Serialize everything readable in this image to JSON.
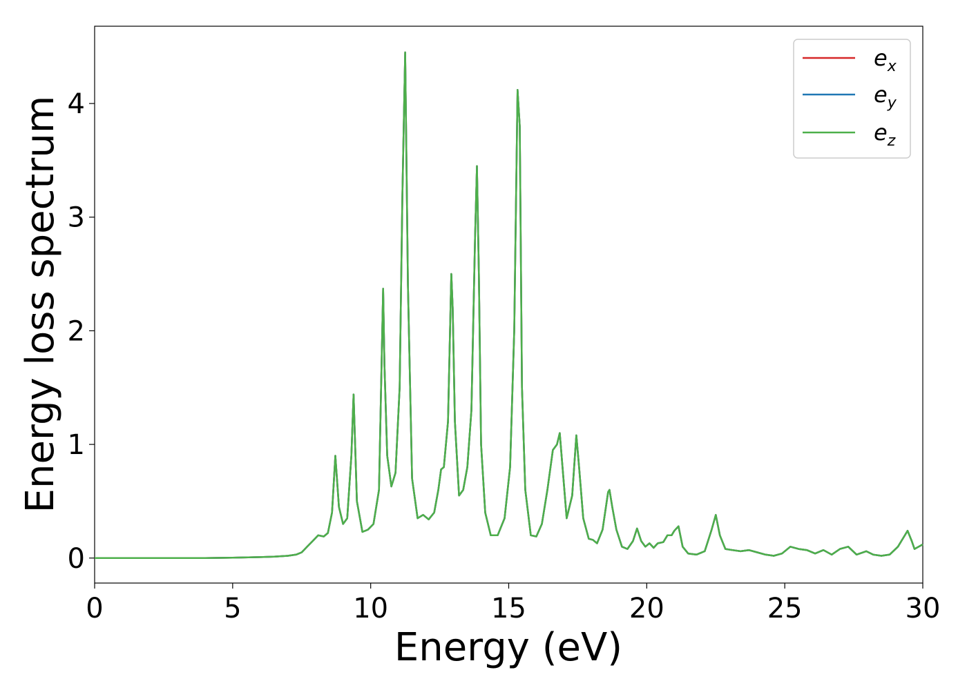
{
  "chart_data": {
    "type": "line",
    "xlabel": "Energy (eV)",
    "ylabel": "Energy loss spectrum",
    "xlim": [
      0,
      30
    ],
    "ylim": [
      -0.22,
      4.68
    ],
    "xticks": [
      0,
      5,
      10,
      15,
      20,
      25,
      30
    ],
    "yticks": [
      0,
      1,
      2,
      3,
      4
    ],
    "xtick_labels": [
      "0",
      "5",
      "10",
      "15",
      "20",
      "25",
      "30"
    ],
    "ytick_labels": [
      "0",
      "1",
      "2",
      "3",
      "4"
    ],
    "grid": false,
    "legend_position": "top-right",
    "series": [
      {
        "name": "e_x",
        "label_main": "e",
        "label_sub": "x",
        "color": "#d62728"
      },
      {
        "name": "e_y",
        "label_main": "e",
        "label_sub": "y",
        "color": "#1f77b4"
      },
      {
        "name": "e_z",
        "label_main": "e",
        "label_sub": "z",
        "color": "#4daf4a"
      }
    ],
    "points": {
      "x": [
        0,
        1,
        2,
        3,
        4,
        5,
        6,
        6.5,
        7.0,
        7.3,
        7.5,
        7.7,
        7.9,
        8.1,
        8.3,
        8.45,
        8.6,
        8.72,
        8.85,
        9.0,
        9.15,
        9.3,
        9.38,
        9.5,
        9.7,
        9.9,
        10.1,
        10.3,
        10.45,
        10.5,
        10.6,
        10.75,
        10.9,
        11.05,
        11.15,
        11.25,
        11.35,
        11.5,
        11.7,
        11.9,
        12.1,
        12.3,
        12.45,
        12.55,
        12.65,
        12.8,
        12.92,
        12.97,
        13.05,
        13.2,
        13.35,
        13.5,
        13.65,
        13.78,
        13.85,
        13.92,
        14.0,
        14.15,
        14.35,
        14.6,
        14.85,
        15.05,
        15.2,
        15.32,
        15.4,
        15.48,
        15.6,
        15.8,
        16.0,
        16.2,
        16.4,
        16.6,
        16.75,
        16.85,
        16.95,
        17.1,
        17.3,
        17.45,
        17.55,
        17.7,
        17.9,
        18.05,
        18.2,
        18.4,
        18.6,
        18.65,
        18.75,
        18.9,
        19.1,
        19.3,
        19.5,
        19.65,
        19.8,
        19.95,
        20.1,
        20.25,
        20.4,
        20.6,
        20.75,
        20.9,
        21.0,
        21.15,
        21.3,
        21.5,
        21.8,
        22.1,
        22.35,
        22.5,
        22.65,
        22.85,
        23.1,
        23.4,
        23.7,
        24.0,
        24.3,
        24.6,
        24.9,
        25.2,
        25.5,
        25.8,
        26.1,
        26.4,
        26.7,
        27.0,
        27.3,
        27.6,
        27.95,
        28.2,
        28.5,
        28.8,
        29.1,
        29.3,
        29.45,
        29.6,
        29.7,
        29.85,
        30.0
      ],
      "y": [
        0,
        0,
        0,
        0,
        0,
        0.003,
        0.008,
        0.012,
        0.02,
        0.03,
        0.05,
        0.1,
        0.15,
        0.2,
        0.19,
        0.22,
        0.4,
        0.9,
        0.45,
        0.3,
        0.35,
        0.9,
        1.44,
        0.5,
        0.23,
        0.25,
        0.3,
        0.6,
        2.37,
        1.7,
        0.9,
        0.63,
        0.75,
        1.5,
        3.2,
        4.45,
        2.4,
        0.7,
        0.35,
        0.38,
        0.34,
        0.4,
        0.6,
        0.78,
        0.8,
        1.2,
        2.5,
        2.2,
        1.2,
        0.55,
        0.6,
        0.8,
        1.3,
        2.8,
        3.45,
        2.5,
        1.0,
        0.4,
        0.2,
        0.2,
        0.35,
        0.8,
        2.0,
        4.12,
        3.8,
        1.5,
        0.6,
        0.2,
        0.19,
        0.3,
        0.6,
        0.95,
        1.0,
        1.1,
        0.8,
        0.35,
        0.55,
        1.08,
        0.8,
        0.35,
        0.17,
        0.16,
        0.13,
        0.25,
        0.58,
        0.6,
        0.45,
        0.25,
        0.1,
        0.08,
        0.15,
        0.26,
        0.15,
        0.1,
        0.13,
        0.09,
        0.13,
        0.14,
        0.2,
        0.2,
        0.24,
        0.28,
        0.1,
        0.04,
        0.03,
        0.06,
        0.25,
        0.38,
        0.2,
        0.08,
        0.07,
        0.06,
        0.07,
        0.05,
        0.03,
        0.02,
        0.04,
        0.1,
        0.08,
        0.07,
        0.04,
        0.07,
        0.03,
        0.08,
        0.1,
        0.03,
        0.06,
        0.03,
        0.02,
        0.03,
        0.1,
        0.18,
        0.24,
        0.15,
        0.08,
        0.1,
        0.12
      ]
    }
  }
}
